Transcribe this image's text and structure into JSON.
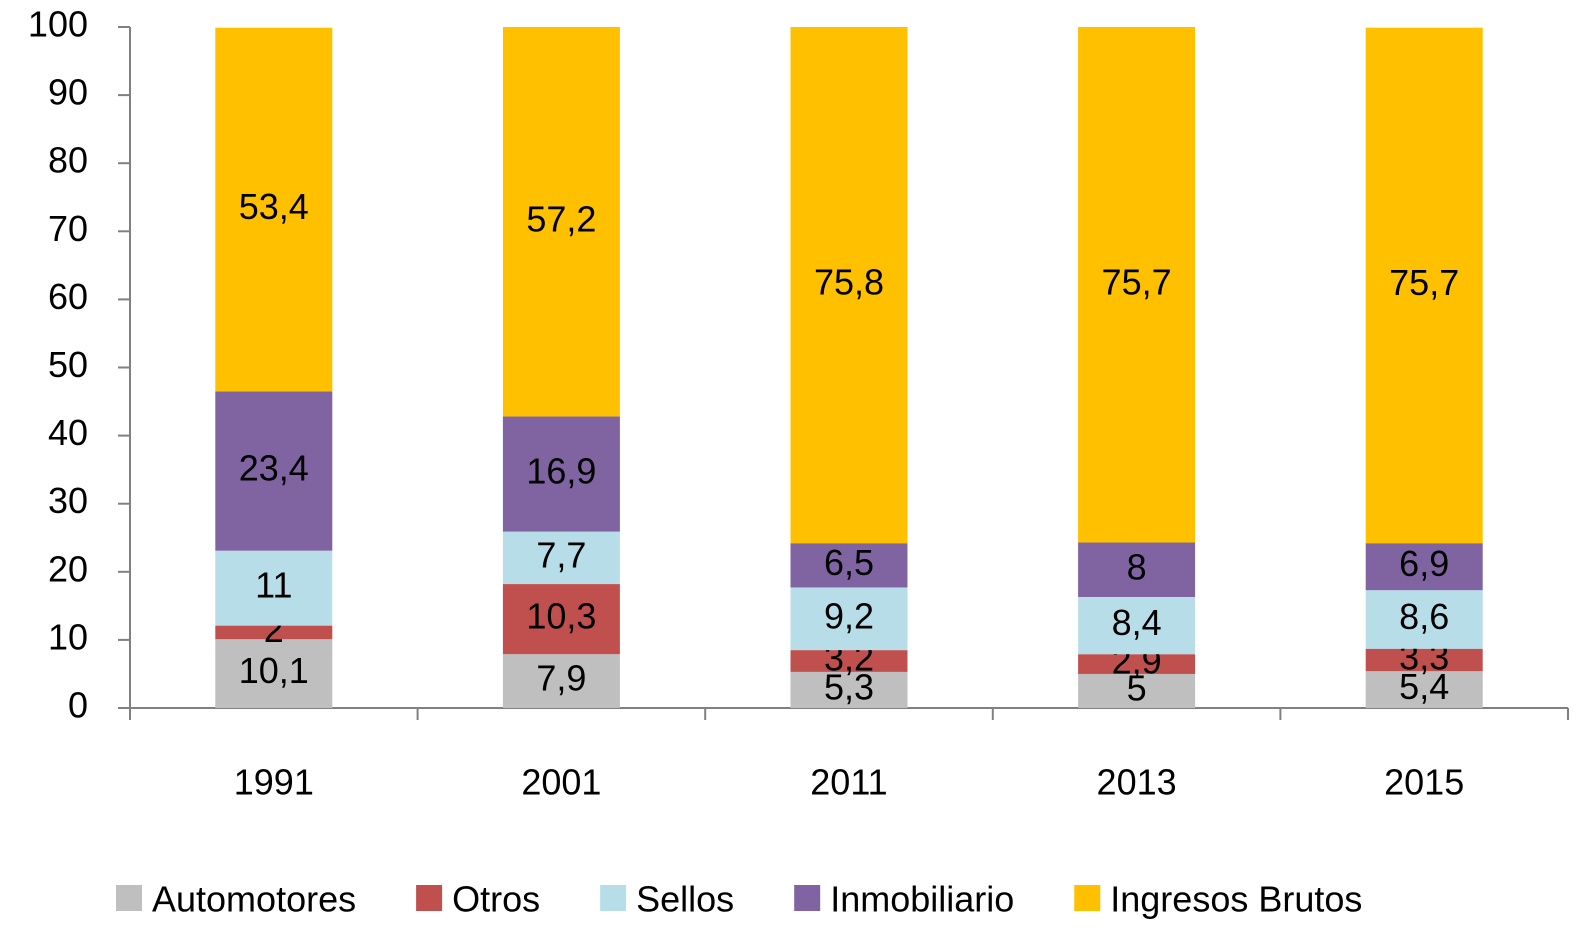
{
  "chart_data": {
    "type": "stacked_bar",
    "categories": [
      "1991",
      "2001",
      "2011",
      "2013",
      "2015"
    ],
    "series": [
      {
        "name": "Automotores",
        "color": "#bfbfbf",
        "values": [
          10.1,
          7.9,
          5.3,
          5,
          5.4
        ],
        "value_labels": [
          "10,1",
          "7,9",
          "5,3",
          "5",
          "5,4"
        ]
      },
      {
        "name": "Otros",
        "color": "#c0504d",
        "values": [
          2,
          10.3,
          3.2,
          2.9,
          3.3
        ],
        "value_labels": [
          "2",
          "10,3",
          "3,2",
          "2,9",
          "3,3"
        ]
      },
      {
        "name": "Sellos",
        "color": "#b7dee8",
        "values": [
          11,
          7.7,
          9.2,
          8.4,
          8.6
        ],
        "value_labels": [
          "11",
          "7,7",
          "9,2",
          "8,4",
          "8,6"
        ]
      },
      {
        "name": "Inmobiliario",
        "color": "#8064a2",
        "values": [
          23.4,
          16.9,
          6.5,
          8,
          6.9
        ],
        "value_labels": [
          "23,4",
          "16,9",
          "6,5",
          "8",
          "6,9"
        ]
      },
      {
        "name": "Ingresos Brutos",
        "color": "#ffc000",
        "values": [
          53.4,
          57.2,
          75.8,
          75.7,
          75.7
        ],
        "value_labels": [
          "53,4",
          "57,2",
          "75,8",
          "75,7",
          "75,7"
        ]
      }
    ],
    "ylim": [
      0,
      100
    ],
    "yticks": [
      0,
      10,
      20,
      30,
      40,
      50,
      60,
      70,
      80,
      90,
      100
    ],
    "legend": "bottom"
  }
}
